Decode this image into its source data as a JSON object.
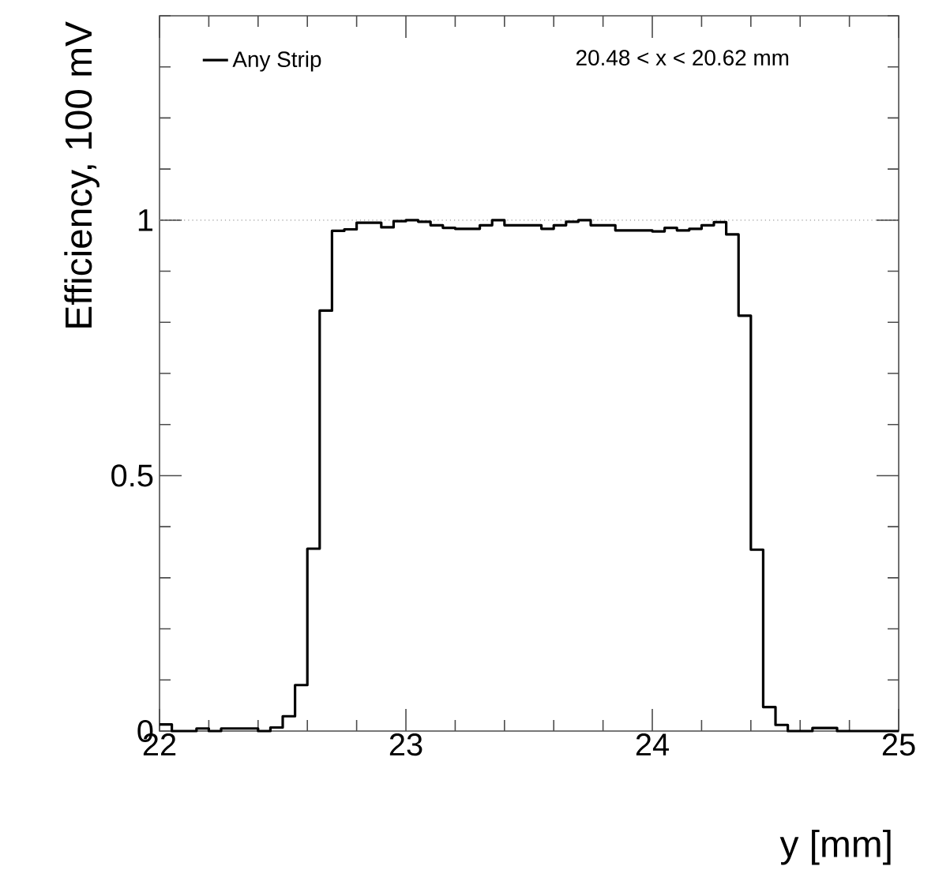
{
  "chart_data": {
    "type": "histogram",
    "xlabel": "y [mm]",
    "ylabel": "Efficiency, 100 mV",
    "annotations": [
      "20.48 < x < 20.62 mm"
    ],
    "bins": [
      22.0,
      22.05,
      22.1,
      22.15,
      22.2,
      22.25,
      22.3,
      22.35,
      22.4,
      22.45,
      22.5,
      22.55,
      22.6,
      22.65,
      22.7,
      22.75,
      22.8,
      22.85,
      22.9,
      22.95,
      23.0,
      23.05,
      23.1,
      23.15,
      23.2,
      23.25,
      23.3,
      23.35,
      23.4,
      23.45,
      23.5,
      23.55,
      23.6,
      23.65,
      23.7,
      23.75,
      23.8,
      23.85,
      23.9,
      23.95,
      24.0,
      24.05,
      24.1,
      24.15,
      24.2,
      24.25,
      24.3,
      24.35,
      24.4,
      24.45,
      24.5,
      24.55,
      24.6,
      24.65,
      24.7,
      24.75,
      24.8,
      24.85,
      24.9,
      24.95,
      25.0
    ],
    "series": [
      {
        "name": "Any Strip",
        "color": "#000000",
        "values": [
          0.013,
          0,
          0,
          0.005,
          0,
          0.005,
          0.005,
          0.005,
          0,
          0.007,
          0.029,
          0.09,
          0.357,
          0.823,
          0.979,
          0.982,
          0.995,
          0.995,
          0.986,
          0.998,
          1.0,
          0.997,
          0.99,
          0.985,
          0.983,
          0.983,
          0.99,
          1.0,
          0.99,
          0.99,
          0.99,
          0.983,
          0.99,
          0.997,
          1.0,
          0.99,
          0.99,
          0.98,
          0.98,
          0.98,
          0.978,
          0.985,
          0.98,
          0.983,
          0.99,
          0.996,
          0.972,
          0.813,
          0.355,
          0.047,
          0.012,
          0,
          0,
          0.006,
          0.006,
          0,
          0,
          0,
          0,
          0
        ]
      }
    ],
    "xlim": [
      22,
      25
    ],
    "ylim": [
      0,
      1.4
    ],
    "xticks": [
      22,
      {
        "value": 22.2,
        "label": null
      },
      {
        "value": 22.4,
        "label": null
      },
      {
        "value": 22.6,
        "label": null
      },
      {
        "value": 22.8,
        "label": null
      },
      23,
      {
        "value": 23.2,
        "label": null
      },
      {
        "value": 23.4,
        "label": null
      },
      {
        "value": 23.6,
        "label": null
      },
      {
        "value": 23.8,
        "label": null
      },
      24,
      {
        "value": 24.2,
        "label": null
      },
      {
        "value": 24.4,
        "label": null
      },
      {
        "value": 24.6,
        "label": null
      },
      {
        "value": 24.8,
        "label": null
      },
      25
    ],
    "yticks": [
      0,
      {
        "value": 0.1,
        "label": null
      },
      {
        "value": 0.2,
        "label": null
      },
      {
        "value": 0.3,
        "label": null
      },
      {
        "value": 0.4,
        "label": null
      },
      0.5,
      {
        "value": 0.6,
        "label": null
      },
      {
        "value": 0.7,
        "label": null
      },
      {
        "value": 0.8,
        "label": null
      },
      {
        "value": 0.9,
        "label": null
      },
      1,
      {
        "value": 1.1,
        "label": null
      },
      {
        "value": 1.2,
        "label": null
      },
      {
        "value": 1.3,
        "label": null
      },
      {
        "value": 1.4,
        "label": null
      }
    ],
    "ref_lines": [
      {
        "axis": "y",
        "value": 1,
        "color": "#999999",
        "line_style": "dotted"
      }
    ],
    "legend": "top left",
    "grid": false,
    "line_style": "solid",
    "marker": "none"
  }
}
